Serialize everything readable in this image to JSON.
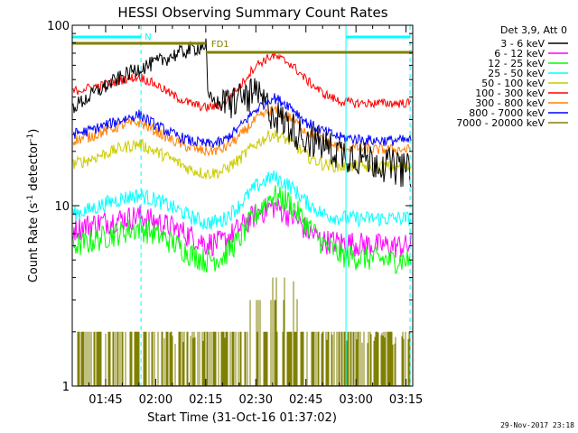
{
  "chart_data": {
    "type": "line",
    "title": "HESSI Observing Summary Count Rates",
    "xlabel": "Start Time (31-Oct-16 01:37:02)",
    "ylabel": "Count Rate (s",
    "ylabel_sup1": "-1",
    "ylabel_mid": " detector",
    "ylabel_sup2": "-1",
    "ylabel_end": ")",
    "yscale": "log",
    "ylim": [
      1,
      100
    ],
    "xlim_minutes": [
      95,
      197
    ],
    "x_ticks": [
      "01:45",
      "02:00",
      "02:15",
      "02:30",
      "02:45",
      "03:00",
      "03:15"
    ],
    "x_tick_minutes": [
      105,
      120,
      135,
      150,
      165,
      180,
      195
    ],
    "y_tick_labels": [
      "1",
      "10",
      "100"
    ],
    "y_tick_values": [
      1,
      10,
      100
    ],
    "legend_header": "Det 3,9, Att 0",
    "legend_position": "right",
    "timestamp": "29-Nov-2017 23:18",
    "night_intervals": [
      {
        "label": "N",
        "start_min": 95,
        "end_min": 115.6
      },
      {
        "label": "",
        "start_min": 177,
        "end_min": 196.2
      }
    ],
    "flare_flag": {
      "label": "FD1",
      "start_min": 95,
      "end_min": 197
    },
    "series": [
      {
        "name": "3 - 6 keV",
        "color": "#000000",
        "x": [
          95,
          100,
          105,
          110,
          115,
          120,
          125,
          130,
          133,
          135.2,
          135.5,
          140,
          145,
          150,
          155,
          160,
          165,
          170,
          175,
          180,
          185,
          190,
          195
        ],
        "values": [
          35,
          40,
          46,
          52,
          58,
          62,
          68,
          73,
          76,
          78,
          40,
          36,
          40,
          42,
          33,
          28,
          24,
          22,
          20,
          19,
          18,
          17,
          16
        ]
      },
      {
        "name": "6 - 12 keV",
        "color": "#ff00ff",
        "x": [
          95,
          105,
          115,
          125,
          135,
          140,
          145,
          150,
          155,
          160,
          165,
          170,
          180,
          190,
          195
        ],
        "values": [
          7.5,
          8.2,
          8.8,
          7.6,
          6.2,
          6.3,
          7.5,
          9.0,
          10.0,
          9.0,
          7.4,
          6.4,
          6.2,
          6.0,
          6.0
        ]
      },
      {
        "name": "12 - 25 keV",
        "color": "#00ff00",
        "x": [
          95,
          100,
          105,
          110,
          115,
          120,
          125,
          130,
          135,
          140,
          145,
          150,
          155,
          160,
          165,
          170,
          175,
          180,
          185,
          190,
          195
        ],
        "values": [
          6.0,
          6.3,
          6.8,
          7.2,
          7.6,
          7.0,
          6.3,
          5.5,
          5.0,
          5.2,
          6.5,
          9.0,
          11.5,
          10.5,
          8.0,
          6.2,
          5.4,
          5.2,
          5.1,
          5.0,
          5.0
        ]
      },
      {
        "name": "25 - 50 keV",
        "color": "#00ffff",
        "x": [
          95,
          100,
          105,
          110,
          115,
          120,
          125,
          130,
          135,
          140,
          145,
          150,
          155,
          160,
          165,
          170,
          175,
          180,
          185,
          190,
          195
        ],
        "values": [
          9.0,
          9.5,
          10.3,
          11.0,
          11.5,
          10.8,
          9.8,
          8.8,
          8.0,
          8.3,
          10.0,
          12.8,
          14.5,
          13.0,
          10.5,
          9.0,
          8.6,
          8.5,
          8.5,
          8.5,
          8.5
        ]
      },
      {
        "name": "50 - 100 keV",
        "color": "#cccc00",
        "x": [
          95,
          100,
          105,
          110,
          115,
          120,
          125,
          130,
          135,
          140,
          145,
          150,
          155,
          160,
          165,
          170,
          175,
          180,
          185,
          190,
          195
        ],
        "values": [
          17,
          18,
          19.5,
          21,
          22,
          20,
          18,
          16,
          15,
          15.5,
          18,
          22,
          25,
          23,
          19,
          17,
          16.5,
          16.5,
          16.5,
          16.5,
          16.5
        ]
      },
      {
        "name": "100 - 300 keV",
        "color": "#ff0000",
        "x": [
          95,
          100,
          105,
          110,
          115,
          120,
          125,
          130,
          135,
          140,
          145,
          150,
          155,
          160,
          165,
          170,
          175,
          180,
          185,
          190,
          195
        ],
        "values": [
          43,
          45,
          47,
          50,
          52,
          47,
          41,
          37,
          35,
          36,
          45,
          60,
          68,
          62,
          50,
          42,
          38,
          37,
          37,
          37,
          37
        ]
      },
      {
        "name": "300 - 800 keV",
        "color": "#ff8000",
        "x": [
          95,
          100,
          105,
          110,
          115,
          120,
          125,
          130,
          135,
          140,
          145,
          150,
          155,
          160,
          165,
          170,
          175,
          180,
          185,
          190,
          195
        ],
        "values": [
          23,
          24,
          26,
          28,
          29,
          26,
          23,
          21,
          20,
          20.5,
          24,
          30,
          34,
          31,
          26,
          23,
          21,
          21,
          20.5,
          20.5,
          20.5
        ]
      },
      {
        "name": "800 - 7000 keV",
        "color": "#0000ff",
        "x": [
          95,
          100,
          105,
          110,
          115,
          120,
          125,
          130,
          135,
          140,
          145,
          150,
          155,
          160,
          165,
          170,
          175,
          180,
          185,
          190,
          195
        ],
        "values": [
          25,
          26,
          28,
          30,
          32,
          28,
          25,
          23,
          22,
          22.5,
          27,
          34,
          40,
          36,
          29,
          26,
          24,
          23.5,
          23,
          23,
          23
        ]
      },
      {
        "name": "7000 - 20000 keV",
        "color": "#808000",
        "x": [
          95,
          100,
          105,
          110,
          115,
          120,
          125,
          130,
          135,
          140,
          145,
          150,
          155,
          160,
          165,
          170,
          175,
          180,
          185,
          190,
          195
        ],
        "values": [
          1.5,
          1.5,
          1.5,
          1.5,
          1.5,
          1.5,
          1.3,
          1.3,
          1.3,
          1.3,
          1.6,
          2.4,
          3.0,
          2.6,
          1.7,
          1.4,
          1.3,
          1.3,
          1.3,
          1.3,
          1.3
        ]
      }
    ]
  }
}
